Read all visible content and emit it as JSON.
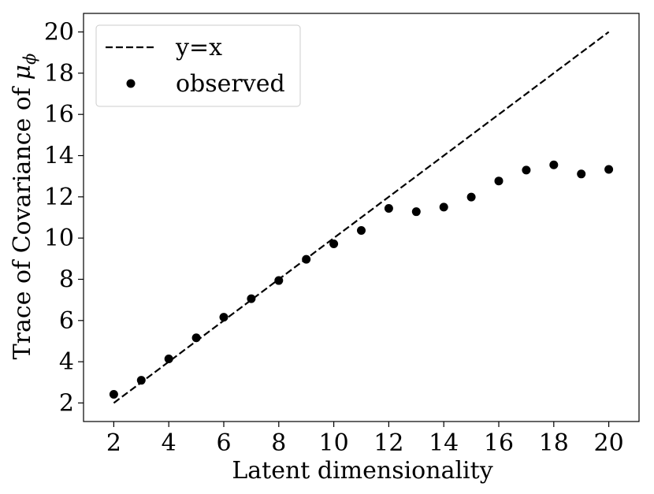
{
  "chart_data": {
    "type": "scatter",
    "title": "",
    "xlabel": "Latent dimensionality",
    "ylabel_prefix": "Trace of Covariance of ",
    "ylabel_symbol": "μ",
    "ylabel_subscript": "ϕ",
    "xlim": [
      0.9,
      21.1
    ],
    "ylim": [
      1.1,
      20.9
    ],
    "xticks": [
      2,
      4,
      6,
      8,
      10,
      12,
      14,
      16,
      18,
      20
    ],
    "yticks": [
      2,
      4,
      6,
      8,
      10,
      12,
      14,
      16,
      18,
      20
    ],
    "grid": false,
    "legend_position": "top-left",
    "series": [
      {
        "name": "y=x",
        "kind": "line",
        "style": "dashed",
        "color": "#000000",
        "x": [
          2,
          20
        ],
        "y": [
          2,
          20
        ]
      },
      {
        "name": "observed",
        "kind": "scatter",
        "color": "#000000",
        "x": [
          2,
          3,
          4,
          5,
          6,
          7,
          8,
          9,
          10,
          11,
          12,
          13,
          14,
          15,
          16,
          17,
          18,
          19,
          20
        ],
        "y": [
          2.42,
          3.1,
          4.14,
          5.16,
          6.16,
          7.06,
          7.94,
          8.97,
          9.72,
          10.37,
          11.44,
          11.28,
          11.5,
          11.99,
          12.77,
          13.3,
          13.55,
          13.11,
          13.33
        ]
      }
    ]
  }
}
